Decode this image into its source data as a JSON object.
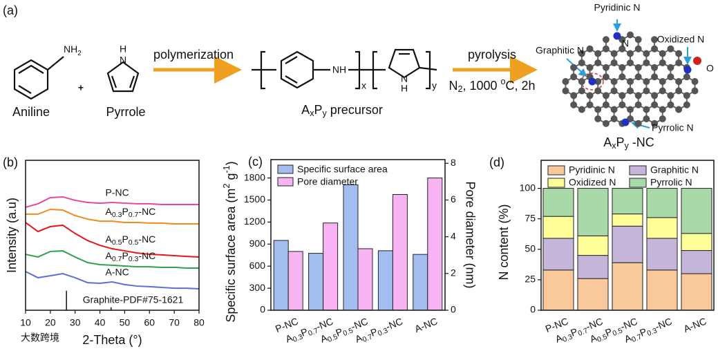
{
  "scheme": {
    "panel": "(a)",
    "aniline_group": [
      {
        "text": "NH"
      },
      {
        "sub": "2"
      }
    ],
    "plus": "+",
    "aniline": "Aniline",
    "pyrrole_h": "H",
    "pyrrole_n": "N",
    "pyrrole": "Pyrrole",
    "step1": "polymerization",
    "linker": "NH",
    "repeat_x": "x",
    "repeat_y": "y",
    "precursor_n": "N",
    "precursor_h": "H",
    "precursor": [
      {
        "text": "A"
      },
      {
        "sub": "x"
      },
      {
        "text": "P"
      },
      {
        "sub": "y"
      },
      {
        "text": " precursor"
      }
    ],
    "step2": "pyrolysis",
    "conditions": [
      {
        "text": "N"
      },
      {
        "sub": "2"
      },
      {
        "text": ", 1000 "
      },
      {
        "sup": "o"
      },
      {
        "text": "C, 2h"
      }
    ],
    "sites": [
      "Pyridinic N",
      "Graphitic N",
      "Oxidized N",
      "Pyrrolic N"
    ],
    "atom_n": "N",
    "atom_o": "O",
    "product": [
      {
        "text": "A"
      },
      {
        "sub": "x"
      },
      {
        "text": "P"
      },
      {
        "sub": "y"
      },
      {
        "text": " -NC"
      }
    ]
  },
  "watermark": "大数跨境",
  "chart_data": [
    {
      "type": "line",
      "panel": "(b)",
      "xlabel": "2-Theta (°)",
      "ylabel": "Intensity (a.u)",
      "x": [
        10,
        15,
        20,
        25,
        30,
        35,
        40,
        45,
        50,
        55,
        60,
        65,
        70,
        75,
        80
      ],
      "xlim": [
        10,
        80
      ],
      "xticks": [
        10,
        20,
        30,
        40,
        50,
        60,
        70,
        80
      ],
      "ylim": [
        0,
        100
      ],
      "series": [
        {
          "name": "P-NC",
          "color": "#e9459f",
          "values": [
            68.7,
            71,
            75.1,
            75.6,
            73.3,
            71.9,
            71.4,
            71.9,
            71.4,
            71,
            71,
            70.5,
            70.5,
            70.5,
            70.5
          ]
        },
        {
          "name": "A0.3P0.7-NC",
          "color": "#f28a1e",
          "values": [
            64.1,
            64.1,
            67.3,
            66.8,
            63.1,
            60.8,
            59.4,
            59.4,
            58.5,
            58.5,
            58.1,
            58.1,
            57.6,
            57.6,
            57.6
          ]
        },
        {
          "name": "A0.5P0.5-NC",
          "color": "#e8141c",
          "values": [
            58.5,
            52.5,
            55.8,
            56.7,
            51.2,
            46.5,
            43.3,
            41,
            39.6,
            38.2,
            37.3,
            36.9,
            36.4,
            35.9,
            35.5
          ]
        },
        {
          "name": "A0.7P0.3-NC",
          "color": "#2ea24a",
          "values": [
            37.3,
            35.5,
            39.2,
            39.6,
            35.5,
            31.8,
            30.4,
            30,
            29.5,
            29,
            29,
            28.6,
            28.6,
            28.1,
            28.1
          ]
        },
        {
          "name": "A-NC",
          "color": "#5a6fd8",
          "values": [
            25.8,
            21.7,
            23,
            24.4,
            21.7,
            18.4,
            18,
            18.9,
            17.1,
            16.1,
            15.7,
            15.2,
            14.7,
            14.7,
            14.3
          ]
        }
      ],
      "reference": {
        "label": "Graphite-PDF#75-1621",
        "x": [
          26.5,
          44.5
        ],
        "values": [
          13,
          2
        ]
      }
    },
    {
      "type": "bar",
      "panel": "(c)",
      "ylabel": [
        {
          "text": "Specific surface area (m"
        },
        {
          "sup": "2"
        },
        {
          "text": " g"
        },
        {
          "sup": "-1"
        },
        {
          "text": ")"
        }
      ],
      "y2label": "Pore diameter (nm)",
      "categories": [
        "P-NC",
        "A0.3P0.7-NC",
        "A0.5P0.5-NC",
        "A0.7P0.3-NC",
        "A-NC"
      ],
      "ylim": [
        0,
        2050
      ],
      "yticks": [
        0,
        300,
        600,
        900,
        1200,
        1500,
        1800
      ],
      "y2lim": [
        0,
        8.2
      ],
      "y2ticks": [
        0,
        2,
        4,
        6,
        8
      ],
      "legend": "upper left",
      "series": [
        {
          "name": "Specific surface area",
          "color": "#a3bdf0",
          "values": [
            950,
            775,
            1707,
            810,
            760
          ]
        },
        {
          "name": "Pore diameter",
          "color": "#f8b4f2",
          "axis": "y2",
          "values": [
            3.2,
            4.75,
            3.35,
            6.3,
            7.2
          ]
        }
      ]
    },
    {
      "type": "stacked_bar",
      "panel": "(d)",
      "ylabel": "N content (%)",
      "categories": [
        "P-NC",
        "A0.3P0.7-NC",
        "A0.5P0.5-NC",
        "A0.7P0.3-NC",
        "A-NC"
      ],
      "ylim": [
        0,
        123
      ],
      "yticks": [
        0,
        25,
        50,
        75,
        100
      ],
      "legend": "top",
      "series": [
        {
          "name": "Pyridinic N",
          "color": "#f9c89b",
          "values": [
            33,
            26,
            39,
            33,
            30
          ]
        },
        {
          "name": "Graphitic N",
          "color": "#c5b5da",
          "values": [
            26,
            19,
            30,
            26,
            19
          ]
        },
        {
          "name": "Oxidized N",
          "color": "#ffff99",
          "values": [
            18,
            16,
            10,
            17,
            14
          ]
        },
        {
          "name": "Pyrrolic N",
          "color": "#a9d9a9",
          "values": [
            23,
            39,
            21,
            24,
            37
          ]
        }
      ]
    }
  ]
}
